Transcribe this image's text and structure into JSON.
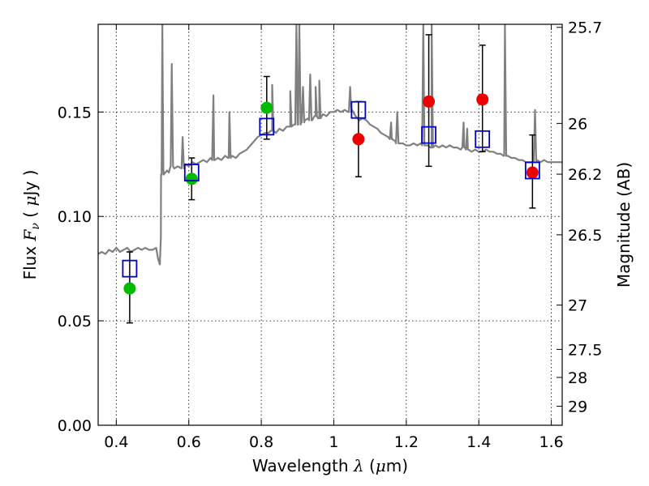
{
  "chart_data": {
    "type": "scatter",
    "xlabel": "Wavelength  λ (μm)",
    "xlabel_parts": [
      "Wavelength  ",
      "λ",
      " (",
      "μ",
      "m)"
    ],
    "ylabel": "Flux  Fν  ( μJy )",
    "ylabel_parts": [
      "Flux  ",
      "F",
      "ν",
      "  ( ",
      "μ",
      "Jy )"
    ],
    "y2label": "Magnitude (AB)",
    "xlim": [
      0.35,
      1.63
    ],
    "ylim": [
      0.0,
      0.192
    ],
    "x_ticks": [
      {
        "value": 0.4,
        "label": "0.4"
      },
      {
        "value": 0.6,
        "label": "0.6"
      },
      {
        "value": 0.8,
        "label": "0.8"
      },
      {
        "value": 1.0,
        "label": "1"
      },
      {
        "value": 1.2,
        "label": "1.2"
      },
      {
        "value": 1.4,
        "label": "1.4"
      },
      {
        "value": 1.6,
        "label": "1.6"
      }
    ],
    "y_ticks": [
      {
        "value": 0.0,
        "label": "0.00"
      },
      {
        "value": 0.05,
        "label": "0.05"
      },
      {
        "value": 0.1,
        "label": "0.10"
      },
      {
        "value": 0.15,
        "label": "0.15"
      }
    ],
    "y2_ticks": [
      {
        "value": 25.7,
        "label": "25.7"
      },
      {
        "value": 26,
        "label": "26"
      },
      {
        "value": 26.2,
        "label": "26.2"
      },
      {
        "value": 26.5,
        "label": "26.5"
      },
      {
        "value": 27,
        "label": "27"
      },
      {
        "value": 27.5,
        "label": "27.5"
      },
      {
        "value": 28,
        "label": "28"
      },
      {
        "value": 29,
        "label": "29"
      }
    ],
    "grid": true,
    "colors": {
      "spectrum": "#808080",
      "green_points": "#00bb00",
      "red_points": "#ee0000",
      "model_squares": "#0000cc",
      "errorbars": "#000000"
    },
    "series": [
      {
        "kind": "spectrum-line",
        "points": [
          [
            0.35,
            0.082
          ],
          [
            0.36,
            0.083
          ],
          [
            0.37,
            0.082
          ],
          [
            0.38,
            0.084
          ],
          [
            0.39,
            0.083
          ],
          [
            0.4,
            0.085
          ],
          [
            0.41,
            0.083
          ],
          [
            0.42,
            0.084
          ],
          [
            0.43,
            0.085
          ],
          [
            0.44,
            0.083
          ],
          [
            0.45,
            0.084
          ],
          [
            0.46,
            0.085
          ],
          [
            0.47,
            0.084
          ],
          [
            0.48,
            0.085
          ],
          [
            0.49,
            0.084
          ],
          [
            0.5,
            0.084
          ],
          [
            0.51,
            0.085
          ],
          [
            0.515,
            0.08
          ],
          [
            0.52,
            0.077
          ],
          [
            0.523,
            0.09
          ],
          [
            0.525,
            0.12
          ],
          [
            0.53,
            0.122
          ],
          [
            0.535,
            0.121
          ],
          [
            0.54,
            0.122
          ],
          [
            0.545,
            0.121
          ],
          [
            0.55,
            0.124
          ],
          [
            0.56,
            0.123
          ],
          [
            0.57,
            0.124
          ],
          [
            0.58,
            0.123
          ],
          [
            0.59,
            0.125
          ],
          [
            0.6,
            0.124
          ],
          [
            0.61,
            0.126
          ],
          [
            0.62,
            0.125
          ],
          [
            0.63,
            0.126
          ],
          [
            0.64,
            0.127
          ],
          [
            0.65,
            0.126
          ],
          [
            0.66,
            0.128
          ],
          [
            0.67,
            0.127
          ],
          [
            0.68,
            0.128
          ],
          [
            0.69,
            0.127
          ],
          [
            0.7,
            0.129
          ],
          [
            0.71,
            0.128
          ],
          [
            0.72,
            0.129
          ],
          [
            0.73,
            0.128
          ],
          [
            0.74,
            0.13
          ],
          [
            0.75,
            0.131
          ],
          [
            0.76,
            0.132
          ],
          [
            0.77,
            0.134
          ],
          [
            0.78,
            0.136
          ],
          [
            0.79,
            0.138
          ],
          [
            0.8,
            0.139
          ],
          [
            0.81,
            0.14
          ],
          [
            0.82,
            0.14
          ],
          [
            0.83,
            0.141
          ],
          [
            0.84,
            0.14
          ],
          [
            0.85,
            0.142
          ],
          [
            0.86,
            0.141
          ],
          [
            0.87,
            0.143
          ],
          [
            0.88,
            0.143
          ],
          [
            0.89,
            0.144
          ],
          [
            0.9,
            0.144
          ],
          [
            0.91,
            0.145
          ],
          [
            0.92,
            0.146
          ],
          [
            0.93,
            0.147
          ],
          [
            0.94,
            0.146
          ],
          [
            0.95,
            0.148
          ],
          [
            0.96,
            0.147
          ],
          [
            0.97,
            0.149
          ],
          [
            0.98,
            0.148
          ],
          [
            0.99,
            0.15
          ],
          [
            1.0,
            0.15
          ],
          [
            1.01,
            0.151
          ],
          [
            1.02,
            0.15
          ],
          [
            1.03,
            0.151
          ],
          [
            1.04,
            0.15
          ],
          [
            1.05,
            0.151
          ],
          [
            1.06,
            0.148
          ],
          [
            1.07,
            0.146
          ],
          [
            1.08,
            0.147
          ],
          [
            1.09,
            0.146
          ],
          [
            1.1,
            0.144
          ],
          [
            1.11,
            0.143
          ],
          [
            1.12,
            0.142
          ],
          [
            1.13,
            0.14
          ],
          [
            1.14,
            0.139
          ],
          [
            1.15,
            0.138
          ],
          [
            1.16,
            0.137
          ],
          [
            1.17,
            0.136
          ],
          [
            1.18,
            0.135
          ],
          [
            1.19,
            0.135
          ],
          [
            1.2,
            0.134
          ],
          [
            1.21,
            0.134
          ],
          [
            1.22,
            0.135
          ],
          [
            1.23,
            0.134
          ],
          [
            1.24,
            0.135
          ],
          [
            1.25,
            0.134
          ],
          [
            1.26,
            0.134
          ],
          [
            1.27,
            0.133
          ],
          [
            1.28,
            0.134
          ],
          [
            1.29,
            0.133
          ],
          [
            1.3,
            0.134
          ],
          [
            1.31,
            0.133
          ],
          [
            1.32,
            0.134
          ],
          [
            1.33,
            0.133
          ],
          [
            1.34,
            0.133
          ],
          [
            1.35,
            0.132
          ],
          [
            1.36,
            0.133
          ],
          [
            1.37,
            0.132
          ],
          [
            1.38,
            0.131
          ],
          [
            1.39,
            0.132
          ],
          [
            1.4,
            0.131
          ],
          [
            1.41,
            0.131
          ],
          [
            1.42,
            0.132
          ],
          [
            1.43,
            0.131
          ],
          [
            1.44,
            0.131
          ],
          [
            1.45,
            0.13
          ],
          [
            1.46,
            0.13
          ],
          [
            1.47,
            0.129
          ],
          [
            1.48,
            0.129
          ],
          [
            1.49,
            0.128
          ],
          [
            1.5,
            0.128
          ],
          [
            1.51,
            0.127
          ],
          [
            1.52,
            0.127
          ],
          [
            1.53,
            0.126
          ],
          [
            1.54,
            0.126
          ],
          [
            1.55,
            0.126
          ],
          [
            1.56,
            0.127
          ],
          [
            1.57,
            0.126
          ],
          [
            1.58,
            0.127
          ],
          [
            1.59,
            0.126
          ],
          [
            1.6,
            0.126
          ],
          [
            1.61,
            0.126
          ],
          [
            1.62,
            0.126
          ],
          [
            1.63,
            0.126
          ]
        ],
        "emission_lines": [
          [
            0.527,
            0.192
          ],
          [
            0.553,
            0.173
          ],
          [
            0.583,
            0.138
          ],
          [
            0.668,
            0.158
          ],
          [
            0.712,
            0.15
          ],
          [
            0.83,
            0.163
          ],
          [
            0.88,
            0.16
          ],
          [
            0.897,
            0.192
          ],
          [
            0.905,
            0.192
          ],
          [
            0.915,
            0.162
          ],
          [
            0.935,
            0.168
          ],
          [
            0.95,
            0.162
          ],
          [
            0.96,
            0.165
          ],
          [
            1.045,
            0.162
          ],
          [
            1.158,
            0.145
          ],
          [
            1.175,
            0.15
          ],
          [
            1.247,
            0.192
          ],
          [
            1.27,
            0.192
          ],
          [
            1.358,
            0.145
          ],
          [
            1.368,
            0.142
          ],
          [
            1.472,
            0.192
          ],
          [
            1.555,
            0.151
          ]
        ]
      },
      {
        "kind": "green-circles",
        "points": [
          [
            0.437,
            0.0655
          ],
          [
            0.608,
            0.118
          ],
          [
            0.815,
            0.152
          ]
        ]
      },
      {
        "kind": "red-circles",
        "points": [
          [
            1.068,
            0.137
          ],
          [
            1.262,
            0.155
          ],
          [
            1.41,
            0.156
          ],
          [
            1.548,
            0.121
          ]
        ]
      },
      {
        "kind": "model-squares",
        "points": [
          [
            0.437,
            0.075
          ],
          [
            0.608,
            0.121
          ],
          [
            0.815,
            0.143
          ],
          [
            1.068,
            0.151
          ],
          [
            1.262,
            0.139
          ],
          [
            1.41,
            0.137
          ],
          [
            1.548,
            0.122
          ]
        ]
      },
      {
        "kind": "errorbars",
        "points": [
          [
            0.437,
            0.049,
            0.083
          ],
          [
            0.608,
            0.108,
            0.128
          ],
          [
            0.815,
            0.137,
            0.167
          ],
          [
            1.068,
            0.119,
            0.155
          ],
          [
            1.262,
            0.124,
            0.187
          ],
          [
            1.41,
            0.131,
            0.182
          ],
          [
            1.548,
            0.104,
            0.139
          ]
        ]
      }
    ]
  }
}
